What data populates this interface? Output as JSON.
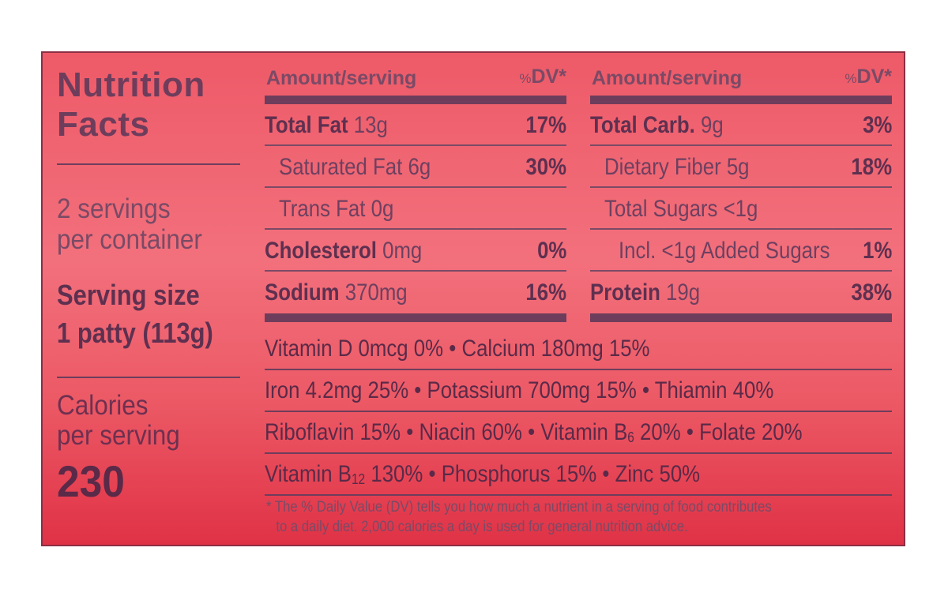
{
  "title_line1": "Nutrition",
  "title_line2": "Facts",
  "servings_line1": "2 servings",
  "servings_line2": "per container",
  "serving_size_label": "Serving size",
  "serving_size_value": "1 patty (113g)",
  "calories_line1": "Calories",
  "calories_line2": "per serving",
  "calories_value": "230",
  "header": {
    "amount": "Amount/serving",
    "dv_prefix": "%",
    "dv": "DV*"
  },
  "left_rows": [
    {
      "bold": "Total Fat",
      "light": " 13g",
      "pct": "17%"
    },
    {
      "bold": "",
      "light": "Saturated Fat 6g",
      "pct": "30%"
    },
    {
      "bold": "",
      "light": "Trans Fat 0g",
      "pct": ""
    },
    {
      "bold": "Cholesterol",
      "light": " 0mg",
      "pct": "0%"
    },
    {
      "bold": "Sodium",
      "light": " 370mg",
      "pct": "16%"
    }
  ],
  "right_rows": [
    {
      "bold": "Total Carb.",
      "light": " 9g",
      "pct": "3%"
    },
    {
      "bold": "",
      "light": "Dietary Fiber 5g",
      "pct": "18%"
    },
    {
      "bold": "",
      "light": "Total Sugars <1g",
      "pct": ""
    },
    {
      "bold": "",
      "light": "Incl. <1g Added Sugars",
      "pct": "1%"
    },
    {
      "bold": "Protein",
      "light": " 19g",
      "pct": "38%"
    }
  ],
  "vitamins": {
    "line1": "Vitamin D 0mcg 0% • Calcium 180mg 15%",
    "line2": "Iron 4.2mg 25% • Potassium 700mg 15% • Thiamin 40%",
    "line3_a": "Riboflavin 15% • Niacin 60% • Vitamin B",
    "line3_sub": "6",
    "line3_b": " 20% • Folate 20%",
    "line4_a": "Vitamin B",
    "line4_sub": "12",
    "line4_b": " 130% • Phosphorus 15% • Zinc 50%"
  },
  "footnote_line1": "* The % Daily Value (DV) tells you how much a nutrient in a serving of food contributes",
  "footnote_line2": "to a daily diet. 2,000 calories a day is used for general nutrition advice."
}
